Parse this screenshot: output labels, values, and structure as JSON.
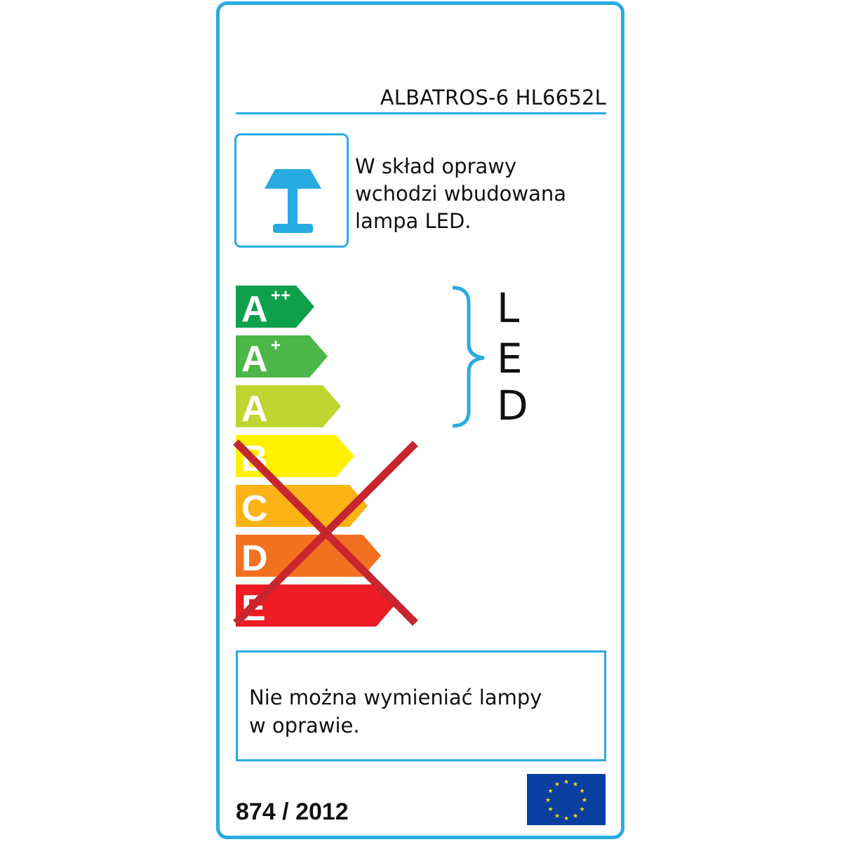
{
  "model": "ALBATROS-6 HL6652L",
  "lamp_icon": "table-lamp-icon",
  "description": [
    "W skład oprawy",
    "wchodzi wbudowana",
    "lampa LED."
  ],
  "energy_classes": [
    {
      "label": "A",
      "sup": "++",
      "color": "#0ea04b",
      "crossed": false
    },
    {
      "label": "A",
      "sup": "+",
      "color": "#4cb748",
      "crossed": false
    },
    {
      "label": "A",
      "sup": "",
      "color": "#bed62f",
      "crossed": false
    },
    {
      "label": "B",
      "sup": "",
      "color": "#fff100",
      "crossed": true
    },
    {
      "label": "C",
      "sup": "",
      "color": "#fbb315",
      "crossed": true
    },
    {
      "label": "D",
      "sup": "",
      "color": "#f37021",
      "crossed": true
    },
    {
      "label": "E",
      "sup": "",
      "color": "#ed1c24",
      "crossed": true
    }
  ],
  "cross_color": "#c8262e",
  "led_letters": [
    "L",
    "E",
    "D"
  ],
  "notice": [
    "Nie można wymieniać lampy",
    "w oprawie."
  ],
  "regulation": "874 / 2012",
  "accent_color": "#29abe2",
  "eu_flag_icon": "eu-flag-icon"
}
